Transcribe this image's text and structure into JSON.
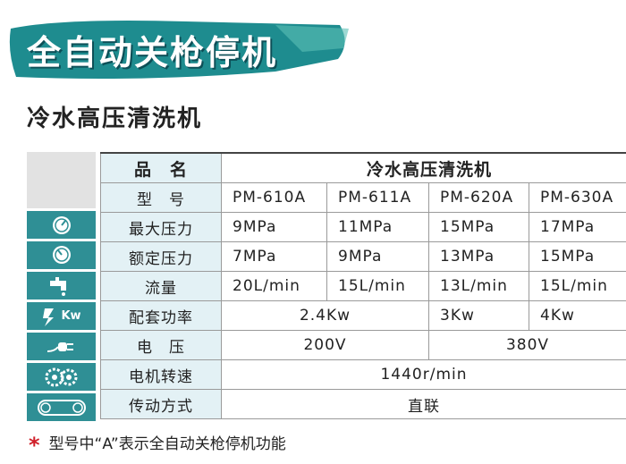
{
  "banner": "全自动关枪停机",
  "subtitle": "冷水高压清洗机",
  "icon_label": "Kw",
  "table": {
    "rows": [
      [
        "品　名",
        "冷水高压清洗机"
      ],
      [
        "型　号",
        "PM-610A",
        "PM-611A",
        "PM-620A",
        "PM-630A"
      ],
      [
        "最大压力",
        "9MPa",
        "11MPa",
        "15MPa",
        "17MPa"
      ],
      [
        "额定压力",
        "7MPa",
        "9MPa",
        "13MPa",
        "15MPa"
      ],
      [
        "流量",
        "20L/min",
        "15L/min",
        "13L/min",
        "15L/min"
      ],
      [
        "配套功率",
        "2.4Kw",
        "3Kw",
        "4Kw"
      ],
      [
        "电　压",
        "200V",
        "380V"
      ],
      [
        "电机转速",
        "1440r/min"
      ],
      [
        "传动方式",
        "直联"
      ]
    ]
  },
  "footnote": {
    "mark": "*",
    "text": "型号中“A”表示全自动关枪停机功能"
  }
}
